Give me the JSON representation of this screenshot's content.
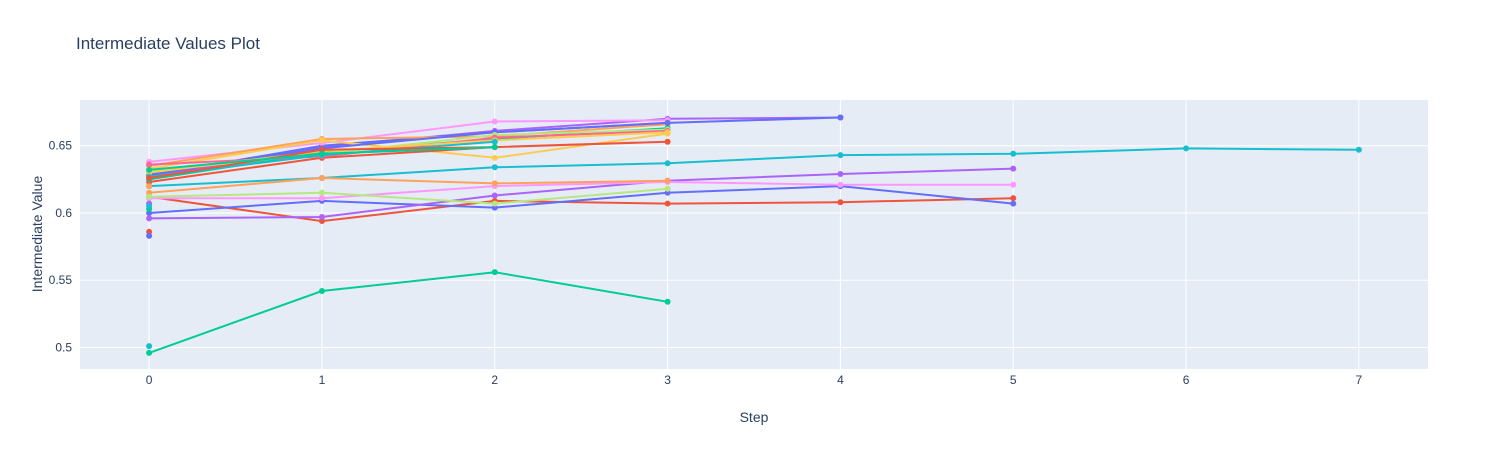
{
  "chart_data": {
    "type": "line",
    "title": "Intermediate Values Plot",
    "xlabel": "Step",
    "ylabel": "Intermediate Value",
    "xlim": [
      -0.4,
      7.4
    ],
    "ylim": [
      0.484,
      0.684
    ],
    "xticks": [
      0,
      1,
      2,
      3,
      4,
      5,
      6,
      7
    ],
    "xtick_labels": [
      "0",
      "1",
      "2",
      "3",
      "4",
      "5",
      "6",
      "7"
    ],
    "yticks": [
      0.5,
      0.55,
      0.6,
      0.65
    ],
    "ytick_labels": [
      "0.5",
      "0.55",
      "0.6",
      "0.65"
    ],
    "grid": true,
    "background_color": "#e5ecf6",
    "series": [
      {
        "color": "#17becf",
        "x": [
          0,
          1,
          2,
          3,
          4,
          5,
          6,
          7
        ],
        "y": [
          0.62,
          0.626,
          0.634,
          0.637,
          0.643,
          0.644,
          0.648,
          0.647
        ]
      },
      {
        "color": "#ab63fa",
        "x": [
          0,
          1,
          2,
          3,
          4
        ],
        "y": [
          0.627,
          0.649,
          0.661,
          0.67,
          0.671
        ]
      },
      {
        "color": "#636efa",
        "x": [
          0,
          1,
          2,
          3,
          4
        ],
        "y": [
          0.628,
          0.65,
          0.66,
          0.667,
          0.671
        ]
      },
      {
        "color": "#ef553b",
        "x": [
          0,
          1,
          2,
          3,
          4,
          5
        ],
        "y": [
          0.612,
          0.594,
          0.609,
          0.607,
          0.608,
          0.611
        ]
      },
      {
        "color": "#636efa",
        "x": [
          0,
          1,
          2,
          3,
          4,
          5
        ],
        "y": [
          0.6,
          0.609,
          0.604,
          0.615,
          0.62,
          0.607
        ]
      },
      {
        "color": "#ab63fa",
        "x": [
          0,
          1,
          2,
          3,
          4,
          5
        ],
        "y": [
          0.596,
          0.597,
          0.613,
          0.624,
          0.629,
          0.633
        ]
      },
      {
        "color": "#ff97ff",
        "x": [
          0,
          1,
          2,
          3,
          4,
          5
        ],
        "y": [
          0.611,
          0.611,
          0.62,
          0.623,
          0.621,
          0.621
        ]
      },
      {
        "color": "#00cc96",
        "x": [
          0,
          1,
          2,
          3
        ],
        "y": [
          0.496,
          0.542,
          0.556,
          0.534
        ]
      },
      {
        "color": "#ffa15a",
        "x": [
          0,
          1,
          2,
          3
        ],
        "y": [
          0.615,
          0.626,
          0.622,
          0.624
        ]
      },
      {
        "color": "#b6e880",
        "x": [
          0,
          1,
          2,
          3
        ],
        "y": [
          0.612,
          0.615,
          0.607,
          0.618
        ]
      },
      {
        "color": "#ff97ff",
        "x": [
          0,
          1,
          2,
          3
        ],
        "y": [
          0.638,
          0.652,
          0.668,
          0.669
        ]
      },
      {
        "color": "#ffa15a",
        "x": [
          0,
          1,
          2,
          3
        ],
        "y": [
          0.635,
          0.655,
          0.657,
          0.666
        ]
      },
      {
        "color": "#fecb52",
        "x": [
          0,
          1,
          2,
          3
        ],
        "y": [
          0.633,
          0.654,
          0.641,
          0.659
        ]
      },
      {
        "color": "#ef553b",
        "x": [
          0,
          1,
          2,
          3
        ],
        "y": [
          0.623,
          0.641,
          0.649,
          0.653
        ]
      },
      {
        "color": "#00cc96",
        "x": [
          0,
          1,
          2,
          3
        ],
        "y": [
          0.625,
          0.645,
          0.655,
          0.663
        ]
      },
      {
        "color": "#636efa",
        "x": [
          0,
          1,
          2,
          3
        ],
        "y": [
          0.629,
          0.648,
          0.66,
          0.667
        ]
      },
      {
        "color": "#b6e880",
        "x": [
          0,
          1,
          2,
          3
        ],
        "y": [
          0.631,
          0.644,
          0.658,
          0.662
        ]
      },
      {
        "color": "#ff6692",
        "x": [
          0,
          1,
          2,
          3
        ],
        "y": [
          0.636,
          0.642,
          0.656,
          0.661
        ]
      },
      {
        "color": "#fecb52",
        "x": [
          0,
          1,
          2,
          3
        ],
        "y": [
          0.63,
          0.646,
          0.654,
          0.66
        ]
      },
      {
        "color": "#17becf",
        "x": [
          0,
          1,
          2
        ],
        "y": [
          0.627,
          0.643,
          0.653
        ]
      },
      {
        "color": "#ef553b",
        "x": [
          0,
          1,
          2
        ],
        "y": [
          0.626,
          0.647,
          0.649
        ]
      },
      {
        "color": "#00cc96",
        "x": [
          0,
          1,
          2
        ],
        "y": [
          0.632,
          0.644,
          0.649
        ]
      },
      {
        "color": "#17becf",
        "x": [
          0
        ],
        "y": [
          0.501
        ]
      },
      {
        "color": "#ef553b",
        "x": [
          0
        ],
        "y": [
          0.586
        ]
      },
      {
        "color": "#636efa",
        "x": [
          0
        ],
        "y": [
          0.583
        ]
      },
      {
        "color": "#ab63fa",
        "x": [
          0
        ],
        "y": [
          0.607
        ]
      },
      {
        "color": "#00cc96",
        "x": [
          0
        ],
        "y": [
          0.603
        ]
      },
      {
        "color": "#17becf",
        "x": [
          0
        ],
        "y": [
          0.605
        ]
      },
      {
        "color": "#ffa15a",
        "x": [
          0
        ],
        "y": [
          0.62
        ]
      }
    ]
  }
}
